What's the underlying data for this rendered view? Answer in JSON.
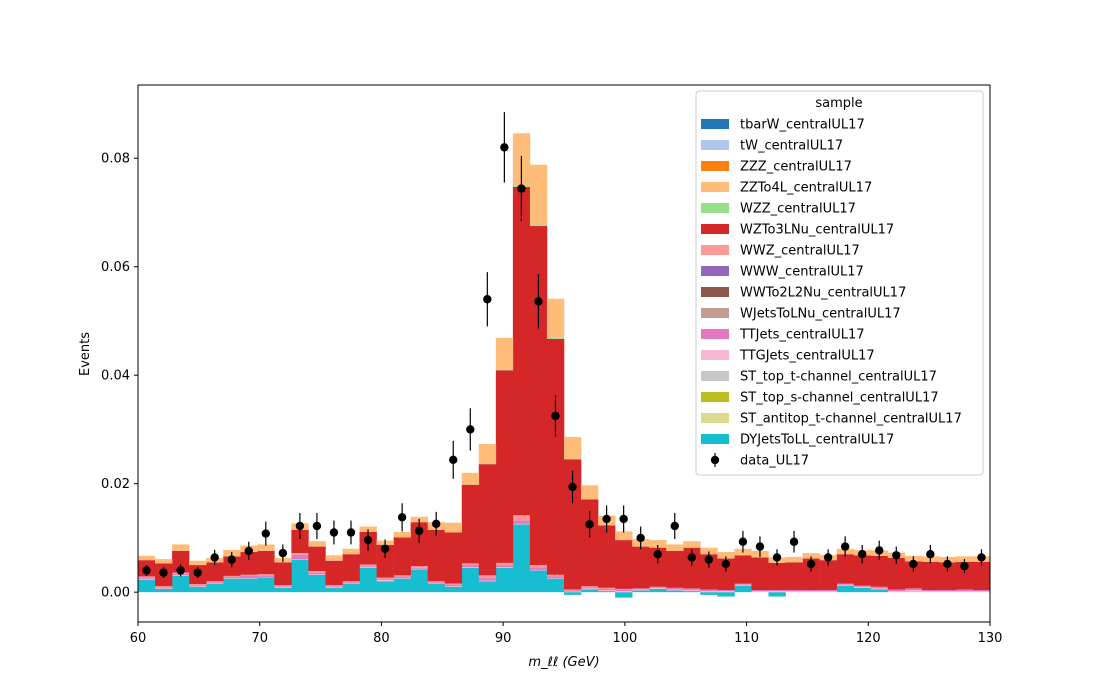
{
  "chart_data": {
    "type": "bar",
    "stacked": true,
    "histogram": true,
    "xlabel": "m_ℓℓ (GeV)",
    "ylabel": "Events",
    "xlim": [
      60,
      130
    ],
    "ylim": [
      -0.0055,
      0.0935
    ],
    "x_ticks": [
      60,
      70,
      80,
      90,
      100,
      110,
      120,
      130
    ],
    "y_ticks": [
      0.0,
      0.02,
      0.04,
      0.06,
      0.08
    ],
    "y_tick_labels": [
      "0.00",
      "0.02",
      "0.04",
      "0.06",
      "0.08"
    ],
    "grid": false,
    "legend": {
      "title": "sample",
      "placement": "upper right"
    },
    "bin_edges": [
      60.0,
      61.4,
      62.8,
      64.2,
      65.6,
      67.0,
      68.4,
      69.8,
      71.2,
      72.6,
      74.0,
      75.4,
      76.8,
      78.2,
      79.6,
      81.0,
      82.4,
      83.8,
      85.2,
      86.6,
      88.0,
      89.4,
      90.8,
      92.2,
      93.6,
      95.0,
      96.4,
      97.8,
      99.2,
      100.6,
      102.0,
      103.4,
      104.8,
      106.2,
      107.6,
      109.0,
      110.4,
      111.8,
      113.2,
      114.6,
      116.0,
      117.4,
      118.8,
      120.2,
      121.6,
      123.0,
      124.4,
      125.8,
      127.2,
      128.6,
      130.0
    ],
    "series": [
      {
        "name": "tbarW_centralUL17",
        "color": "#1f77b4",
        "values": [
          0,
          0,
          0,
          0,
          0,
          0,
          0,
          0,
          0,
          0,
          0,
          0,
          0,
          0,
          0,
          0,
          0,
          0,
          0,
          0,
          0,
          0,
          0,
          0,
          0,
          0,
          0,
          0,
          0,
          0,
          0,
          0,
          0,
          0,
          0,
          0,
          0,
          0,
          0,
          0,
          0,
          0,
          0,
          0,
          0,
          0,
          0,
          0,
          0,
          0
        ]
      },
      {
        "name": "tW_centralUL17",
        "color": "#aec7e8",
        "values": [
          0,
          0,
          0,
          0,
          0,
          0,
          0,
          0,
          0,
          0,
          0,
          0,
          0,
          0,
          0,
          0,
          0,
          0,
          0,
          0,
          0,
          0,
          0,
          0,
          0,
          0,
          0,
          0,
          0,
          0,
          0,
          0,
          0,
          0,
          0,
          0,
          0,
          0,
          0,
          0,
          0,
          0,
          0,
          0,
          0,
          0,
          0,
          0,
          0,
          0
        ]
      },
      {
        "name": "ZZZ_centralUL17",
        "color": "#ff7f0e",
        "values": [
          0,
          0,
          0,
          0,
          0,
          0,
          0,
          0,
          0,
          0,
          0,
          0,
          0,
          0,
          0,
          0,
          0,
          0,
          0,
          0,
          0,
          0,
          0,
          0,
          0,
          0,
          0,
          0,
          0,
          0,
          0,
          0,
          0,
          0,
          0,
          0,
          0,
          0,
          0,
          0,
          0,
          0,
          0,
          0,
          0,
          0,
          0,
          0,
          0,
          0
        ]
      },
      {
        "name": "ZZTo4L_centralUL17",
        "color": "#ffbb78",
        "values": [
          0.0008,
          0.0008,
          0.0012,
          0.0008,
          0.0008,
          0.0012,
          0.0012,
          0.0012,
          0.0008,
          0.0012,
          0.001,
          0.001,
          0.001,
          0.001,
          0.0008,
          0.001,
          0.001,
          0.0014,
          0.0018,
          0.0022,
          0.0036,
          0.0058,
          0.0096,
          0.011,
          0.0072,
          0.004,
          0.0026,
          0.0018,
          0.0016,
          0.0014,
          0.0014,
          0.0012,
          0.0012,
          0.0012,
          0.0012,
          0.0012,
          0.0012,
          0.001,
          0.001,
          0.001,
          0.001,
          0.001,
          0.001,
          0.001,
          0.001,
          0.001,
          0.001,
          0.001,
          0.001,
          0.001
        ]
      },
      {
        "name": "WZZ_centralUL17",
        "color": "#98df8a",
        "values": [
          0,
          0,
          0,
          0,
          0,
          0,
          0,
          0,
          0,
          0,
          0,
          0,
          0,
          0,
          0,
          0,
          0,
          0,
          0,
          0,
          0.0001,
          0.0002,
          0.0003,
          0.0003,
          0.0002,
          0.0001,
          0,
          0,
          0,
          0,
          0,
          0,
          0,
          0,
          0,
          0,
          0,
          0,
          0,
          0,
          0,
          0,
          0,
          0,
          0,
          0,
          0,
          0,
          0,
          0
        ]
      },
      {
        "name": "WZTo3LNu_centralUL17",
        "color": "#d62728",
        "values": [
          0.003,
          0.0042,
          0.004,
          0.0035,
          0.0035,
          0.0036,
          0.0042,
          0.0043,
          0.0042,
          0.0043,
          0.0045,
          0.0045,
          0.005,
          0.006,
          0.006,
          0.007,
          0.0081,
          0.0095,
          0.0094,
          0.0145,
          0.0205,
          0.0355,
          0.0605,
          0.0625,
          0.0435,
          0.024,
          0.016,
          0.0115,
          0.009,
          0.0077,
          0.0072,
          0.0068,
          0.0075,
          0.0065,
          0.0058,
          0.0052,
          0.006,
          0.005,
          0.0051,
          0.0058,
          0.0055,
          0.0054,
          0.0056,
          0.0057,
          0.0058,
          0.005,
          0.0052,
          0.0051,
          0.0051,
          0.0052
        ]
      },
      {
        "name": "WWZ_centralUL17",
        "color": "#ff9896",
        "values": [
          0.0003,
          0.0002,
          0.0002,
          0.0002,
          0.0002,
          0.0002,
          0.0002,
          0.0002,
          0.0002,
          0.0003,
          0.0003,
          0.0002,
          0.0002,
          0.0003,
          0.0003,
          0.0002,
          0.0003,
          0.0002,
          0.0002,
          0.0003,
          0.0005,
          0.0004,
          0.001,
          0.0004,
          0.0003,
          0.0002,
          0.0002,
          0.0002,
          0.0002,
          0,
          0,
          0,
          0,
          0,
          0,
          0,
          0,
          0,
          0,
          0,
          0,
          0,
          0,
          0,
          0,
          0,
          0,
          0,
          0,
          0
        ]
      },
      {
        "name": "WWW_centralUL17",
        "color": "#9467bd",
        "values": [
          0,
          0,
          0,
          0,
          0,
          0,
          0,
          0,
          0,
          0,
          0,
          0,
          0,
          0,
          0,
          0,
          0,
          0,
          0,
          0,
          0,
          0,
          0,
          0,
          0,
          0,
          0,
          0,
          0,
          0,
          0,
          0,
          0,
          0,
          0,
          0,
          0,
          0,
          0,
          0,
          0,
          0,
          0,
          0,
          0,
          0,
          0,
          0,
          0,
          0
        ]
      },
      {
        "name": "WWTo2L2Nu_centralUL17",
        "color": "#8c564b",
        "values": [
          0,
          0,
          0,
          0,
          0,
          0,
          0,
          0,
          0,
          0,
          0,
          0,
          0,
          0,
          0,
          0,
          0,
          0,
          0,
          0,
          0,
          0,
          0,
          0,
          0,
          0,
          0,
          0,
          0,
          0,
          0,
          0,
          0,
          0,
          0,
          0,
          0,
          0,
          0,
          0,
          0,
          0,
          0,
          0,
          0,
          0,
          0,
          0,
          0,
          0
        ]
      },
      {
        "name": "WJetsToLNu_centralUL17",
        "color": "#c49c94",
        "values": [
          0,
          0,
          0,
          0,
          0,
          0,
          0,
          0,
          0,
          0,
          0,
          0,
          0,
          0,
          0,
          0,
          0,
          0,
          0,
          0,
          0,
          0,
          0,
          0,
          0,
          0,
          0,
          0,
          0,
          0,
          0,
          0,
          0,
          0,
          0,
          0,
          0,
          0,
          0,
          0,
          0,
          0,
          0,
          0,
          0,
          0,
          0,
          0,
          0,
          0
        ]
      },
      {
        "name": "TTJets_centralUL17",
        "color": "#e377c2",
        "values": [
          0.0002,
          0.0002,
          0.0003,
          0.0002,
          0.0002,
          0.0002,
          0.0004,
          0.0003,
          0.0002,
          0.0008,
          0.0003,
          0.0002,
          0.0002,
          0.0002,
          0.0002,
          0.0003,
          0.0002,
          0.0002,
          0.0003,
          0.0004,
          0.0005,
          0.0004,
          0.0006,
          0.0005,
          0.0003,
          0.0002,
          0.0002,
          0.0002,
          0.0002,
          0.0002,
          0.0002,
          0.0003,
          0.0003,
          0.0003,
          0.0002,
          0.0002,
          0.0002,
          0.0002,
          0.0002,
          0.0002,
          0.0002,
          0.0002,
          0.0002,
          0.0003,
          0.0003,
          0.0003,
          0.0002,
          0.0002,
          0.0003,
          0.0002
        ]
      },
      {
        "name": "TTGJets_centralUL17",
        "color": "#f7b6d2",
        "values": [
          0.0001,
          0.0001,
          0.0001,
          0.0001,
          0.0001,
          0.0001,
          0.0001,
          0.0001,
          0.0001,
          0.0001,
          0.0001,
          0.0001,
          0.0001,
          0.0001,
          0.0001,
          0.0001,
          0.0001,
          0.0001,
          0.0001,
          0.0001,
          0.0001,
          0.0001,
          0.0001,
          0.0001,
          0.0001,
          0.0001,
          0.0002,
          0.0002,
          0.0002,
          0.0002,
          0.0002,
          0.0002,
          0.0002,
          0.0002,
          0.0002,
          0.0002,
          0.0002,
          0.0002,
          0.0002,
          0.0002,
          0.0002,
          0.0002,
          0.0002,
          0.0002,
          0.0002,
          0.0002,
          0.0002,
          0.0002,
          0.0002,
          0.0002
        ]
      },
      {
        "name": "ST_top_t-channel_centralUL17",
        "color": "#c7c7c7",
        "values": [
          0,
          0,
          0,
          0,
          0,
          0,
          0,
          0,
          0,
          0,
          0,
          0,
          0,
          0,
          0.0001,
          0,
          0,
          0,
          0,
          0,
          0,
          0,
          0,
          0,
          0,
          0,
          0,
          0,
          0,
          0,
          0,
          0,
          0,
          0,
          0,
          0,
          0,
          0,
          0,
          0,
          0,
          0,
          0,
          0,
          0,
          0.0002,
          0,
          0,
          0,
          0
        ]
      },
      {
        "name": "ST_top_s-channel_centralUL17",
        "color": "#bcbd22",
        "values": [
          0,
          0,
          0,
          0,
          0,
          0,
          0,
          0,
          0,
          0,
          0,
          0,
          0,
          0,
          0,
          0,
          0,
          0,
          0,
          0,
          0,
          0,
          0,
          0,
          0,
          0,
          0,
          0,
          0,
          0,
          0,
          0,
          0,
          0,
          0,
          0,
          0,
          0,
          0,
          0,
          0,
          0,
          0,
          0,
          0,
          0,
          0,
          0,
          0,
          0
        ]
      },
      {
        "name": "ST_antitop_t-channel_centralUL17",
        "color": "#dbdb8d",
        "values": [
          0,
          0,
          0,
          0,
          0,
          0,
          0,
          0,
          0,
          0,
          0,
          0,
          0,
          0,
          0,
          0,
          0,
          0,
          0,
          0,
          0,
          0,
          0,
          0,
          0,
          0,
          0,
          0,
          0,
          0,
          0,
          0,
          0,
          0,
          0,
          0,
          0,
          0,
          0,
          0,
          0,
          0,
          0,
          0,
          0,
          0,
          0,
          0,
          0,
          0
        ]
      },
      {
        "name": "DYJetsToLL_centralUL17",
        "color": "#17becf",
        "values": [
          0.0023,
          0.0006,
          0.003,
          0.001,
          0.0015,
          0.0025,
          0.0025,
          0.0027,
          0.0008,
          0.006,
          0.0032,
          0.0008,
          0.0015,
          0.0045,
          0.002,
          0.0025,
          0.0042,
          0.0015,
          0.001,
          0.0045,
          0.002,
          0.0045,
          0.0125,
          0.004,
          0.0025,
          -0.0005,
          0.0005,
          0.0002,
          -0.001,
          0.0003,
          0.0006,
          0.0003,
          0.0002,
          -0.0005,
          -0.0008,
          0.0012,
          0,
          -0.0008,
          0,
          0,
          0,
          0.0012,
          0.0008,
          0.0005,
          0,
          0,
          0,
          0,
          0,
          0
        ]
      }
    ],
    "data_series": {
      "name": "data_UL17",
      "color": "#000000",
      "values": [
        0.004,
        0.0036,
        0.004,
        0.0036,
        0.0064,
        0.006,
        0.0076,
        0.0108,
        0.0072,
        0.0122,
        0.0122,
        0.011,
        0.011,
        0.0096,
        0.008,
        0.0138,
        0.0113,
        0.0126,
        0.0244,
        0.03,
        0.054,
        0.082,
        0.0744,
        0.0536,
        0.0325,
        0.0194,
        0.0125,
        0.0135,
        0.0135,
        0.01,
        0.007,
        0.0122,
        0.0064,
        0.006,
        0.0052,
        0.0093,
        0.0084,
        0.0064,
        0.0093,
        0.0052,
        0.0064,
        0.0084,
        0.007,
        0.0077,
        0.0068,
        0.0052,
        0.007,
        0.0052,
        0.0048,
        0.0064
      ],
      "errors": [
        0.001,
        0.001,
        0.0011,
        0.001,
        0.0014,
        0.0014,
        0.0017,
        0.0022,
        0.0016,
        0.0024,
        0.0024,
        0.0022,
        0.0022,
        0.002,
        0.0017,
        0.0026,
        0.0022,
        0.0022,
        0.0035,
        0.0039,
        0.005,
        0.0065,
        0.006,
        0.005,
        0.0038,
        0.003,
        0.0024,
        0.0025,
        0.0025,
        0.0021,
        0.0017,
        0.0024,
        0.0015,
        0.0015,
        0.0014,
        0.002,
        0.0019,
        0.0015,
        0.002,
        0.0014,
        0.0015,
        0.0019,
        0.0017,
        0.0018,
        0.0016,
        0.0014,
        0.0017,
        0.0014,
        0.0013,
        0.0015
      ]
    }
  }
}
